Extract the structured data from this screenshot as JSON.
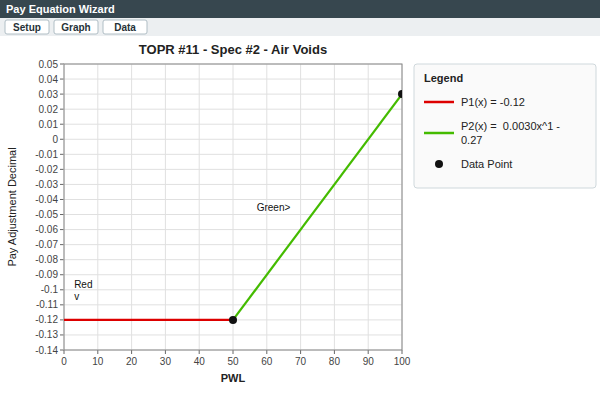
{
  "chart_data": {
    "type": "line",
    "title": "TOPR #11 - Spec #2 - Air Voids",
    "header": "Pay Equation Wizard",
    "tabs": [
      "Setup",
      "Graph",
      "Data"
    ],
    "x_label": "PWL",
    "y_label": "Pay Adjustment Decimal",
    "xlim": [
      0,
      100
    ],
    "ylim": [
      -0.14,
      0.05
    ],
    "xticks": [
      0,
      10,
      20,
      30,
      40,
      50,
      60,
      70,
      80,
      90,
      100
    ],
    "yticks": [
      0.05,
      0.04,
      0.03,
      0.02,
      0.01,
      0,
      -0.01,
      -0.02,
      -0.03,
      -0.04,
      -0.05,
      -0.06,
      -0.07,
      -0.08,
      -0.09,
      -0.1,
      -0.11,
      -0.12,
      -0.13,
      -0.14
    ],
    "grid": true,
    "legend": "right",
    "legend_title": "Legend",
    "series": [
      {
        "name": "P1(x) = -0.12",
        "type": "line",
        "color": "#DD0000",
        "x": [
          0,
          50
        ],
        "values": [
          -0.12,
          -0.12
        ]
      },
      {
        "name": "P2(x) =  0.0030x^1 -\n0.27",
        "type": "line",
        "color": "#44BB00",
        "x": [
          50,
          100
        ],
        "values": [
          -0.12,
          0.03
        ]
      },
      {
        "name": "Data Point",
        "type": "scatter",
        "color": "#111111",
        "marker": "circle",
        "x": [
          50,
          100
        ],
        "values": [
          -0.12,
          0.03
        ]
      }
    ],
    "annotations": [
      {
        "text": "Red\nv",
        "x": 3,
        "y": -0.108
      },
      {
        "text": "Green>",
        "x": 57,
        "y": -0.049
      }
    ]
  }
}
